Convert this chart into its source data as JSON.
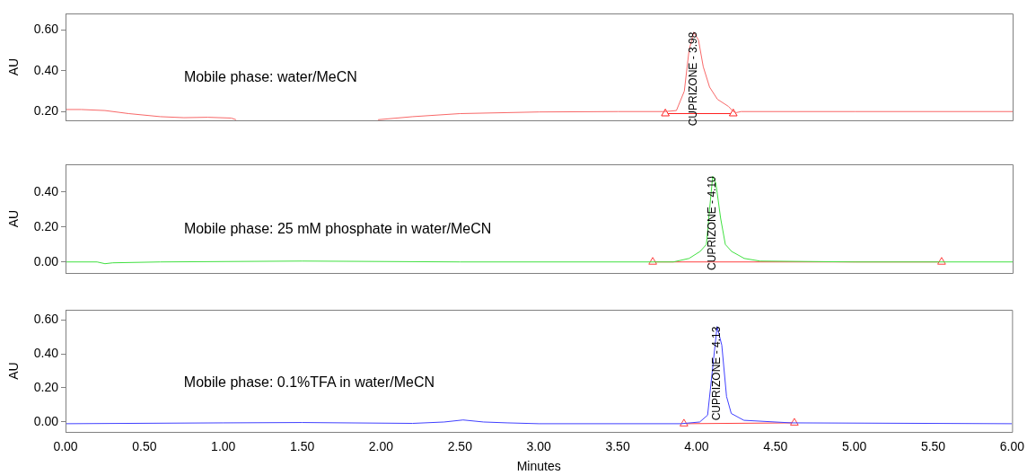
{
  "chart_data": [
    {
      "type": "line",
      "ylabel": "AU",
      "xlim": [
        0,
        6
      ],
      "ylim": [
        0.157,
        0.681
      ],
      "yticks": [
        {
          "value": 0.2,
          "label": "0.20"
        },
        {
          "value": 0.4,
          "label": "0.40"
        },
        {
          "value": 0.6,
          "label": "0.60"
        }
      ],
      "tick_labels": "y",
      "grid": false,
      "legend": false,
      "line_style": "solid",
      "annotations": [
        "Mobile phase: water/MeCN",
        {
          "text": "CUPRIZONE - 3.98",
          "x": 3.98,
          "y": 0.59
        }
      ],
      "series": [
        {
          "color": "#f86868",
          "marker": "none",
          "x": [
            0,
            0.1,
            0.25,
            0.4,
            0.6,
            0.75,
            0.9,
            1.05,
            1.08,
            1.12,
            1.5,
            1.95,
            1.98,
            2.2,
            2.5,
            3.0,
            3.5,
            3.8,
            3.87,
            3.92,
            3.95,
            3.98,
            4.01,
            4.04,
            4.08,
            4.13,
            4.2,
            4.23,
            4.25,
            4.28,
            5.0,
            6.0
          ],
          "values": [
            0.21,
            0.21,
            0.205,
            0.19,
            0.175,
            0.17,
            0.172,
            0.168,
            0.16,
            null,
            null,
            null,
            0.16,
            0.175,
            0.19,
            0.198,
            0.2,
            0.2,
            0.205,
            0.3,
            0.5,
            0.59,
            0.55,
            0.42,
            0.32,
            0.26,
            0.225,
            0.2,
            0.195,
            0.2,
            0.2,
            0.2
          ]
        },
        {
          "color": "#ff2020",
          "marker": "triangle",
          "x": [
            3.8,
            4.23
          ],
          "values": [
            0.19,
            0.19
          ]
        }
      ]
    },
    {
      "type": "line",
      "ylabel": "AU",
      "xlim": [
        0,
        6
      ],
      "ylim": [
        -0.063,
        0.558
      ],
      "yticks": [
        {
          "value": 0,
          "label": "0.00"
        },
        {
          "value": 0.2,
          "label": "0.20"
        },
        {
          "value": 0.4,
          "label": "0.40"
        }
      ],
      "tick_labels": "y",
      "grid": false,
      "legend": false,
      "line_style": "solid",
      "annotations": [
        "Mobile phase: 25 mM phosphate in water/MeCN",
        {
          "text": "CUPRIZONE - 4.10",
          "x": 4.1,
          "y": 0.49
        }
      ],
      "series": [
        {
          "color": "#40e040",
          "marker": "none",
          "x": [
            0,
            0.2,
            0.25,
            0.3,
            0.6,
            1.5,
            2.5,
            3.6,
            3.85,
            3.95,
            4.02,
            4.06,
            4.08,
            4.1,
            4.12,
            4.15,
            4.18,
            4.22,
            4.3,
            4.4,
            5.0,
            6.0
          ],
          "values": [
            0,
            0,
            -0.01,
            -0.005,
            0,
            0.005,
            0,
            0,
            0,
            0.02,
            0.06,
            0.1,
            0.3,
            0.49,
            0.45,
            0.25,
            0.1,
            0.06,
            0.02,
            0.005,
            0,
            0
          ]
        },
        {
          "color": "#ff4040",
          "marker": "triangle",
          "x": [
            3.72,
            5.55
          ],
          "values": [
            0,
            0
          ]
        }
      ]
    },
    {
      "type": "line",
      "ylabel": "AU",
      "xlabel": "Minutes",
      "xlim": [
        0,
        6
      ],
      "xticks": [
        {
          "value": 0,
          "label": "0.00"
        },
        {
          "value": 0.5,
          "label": "0.50"
        },
        {
          "value": 1,
          "label": "1.00"
        },
        {
          "value": 1.5,
          "label": "1.50"
        },
        {
          "value": 2,
          "label": "2.00"
        },
        {
          "value": 2.5,
          "label": "2.50"
        },
        {
          "value": 3,
          "label": "3.00"
        },
        {
          "value": 3.5,
          "label": "3.50"
        },
        {
          "value": 4,
          "label": "4.00"
        },
        {
          "value": 4.5,
          "label": "4.50"
        },
        {
          "value": 5,
          "label": "5.00"
        },
        {
          "value": 5.5,
          "label": "5.50"
        },
        {
          "value": 6,
          "label": "6.00"
        }
      ],
      "ylim": [
        -0.058,
        0.658
      ],
      "yticks": [
        {
          "value": 0,
          "label": "0.00"
        },
        {
          "value": 0.2,
          "label": "0.20"
        },
        {
          "value": 0.4,
          "label": "0.40"
        },
        {
          "value": 0.6,
          "label": "0.60"
        }
      ],
      "grid": false,
      "legend": false,
      "line_style": "solid",
      "annotations": [
        "Mobile phase: 0.1%TFA in water/MeCN",
        {
          "text": "CUPRIZONE - 4.13",
          "x": 4.13,
          "y": 0.56
        }
      ],
      "series": [
        {
          "color": "#4040ff",
          "marker": "none",
          "x": [
            0,
            1.0,
            1.5,
            2.2,
            2.4,
            2.52,
            2.65,
            2.8,
            3.0,
            3.9,
            4.02,
            4.07,
            4.1,
            4.13,
            4.16,
            4.19,
            4.22,
            4.3,
            4.6,
            6.0
          ],
          "values": [
            -0.01,
            -0.005,
            -0.003,
            -0.008,
            0,
            0.012,
            0,
            -0.005,
            -0.01,
            -0.01,
            0,
            0.04,
            0.3,
            0.56,
            0.45,
            0.15,
            0.05,
            0.01,
            -0.005,
            -0.01
          ]
        },
        {
          "color": "#ff4040",
          "marker": "triangle",
          "x": [
            3.92,
            4.62
          ],
          "values": [
            -0.01,
            -0.005
          ]
        }
      ]
    }
  ]
}
